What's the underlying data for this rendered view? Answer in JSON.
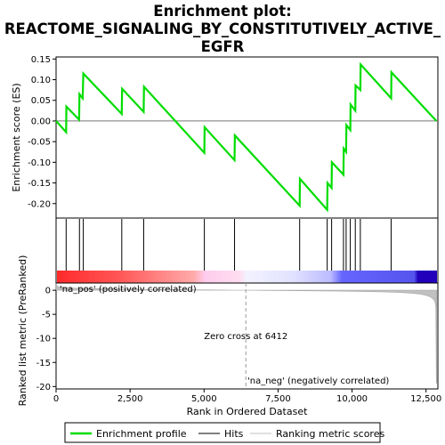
{
  "title_lines": [
    "Enrichment plot:",
    "REACTOME_SIGNALING_BY_CONSTITUTIVELY_ACTIVE_",
    "EGFR"
  ],
  "chart_data": [
    {
      "type": "line",
      "ylabel": "Enrichment score (ES)",
      "xlim": [
        0,
        12900
      ],
      "ylim": [
        -0.235,
        0.155
      ],
      "yticks": [
        0.15,
        0.1,
        0.05,
        0.0,
        -0.05,
        -0.1,
        -0.15,
        -0.2
      ],
      "ytick_labels": [
        "0.15",
        "0.10",
        "0.05",
        "0.00",
        "-0.05",
        "-0.10",
        "-0.15",
        "-0.20"
      ],
      "series": [
        {
          "color": "#00dd00",
          "x": [
            0,
            340,
            350,
            780,
            790,
            900,
            920,
            2220,
            2230,
            2960,
            2970,
            5010,
            5020,
            6030,
            6040,
            8230,
            8240,
            9160,
            9170,
            9310,
            9320,
            9710,
            9720,
            9800,
            9810,
            9940,
            9950,
            10110,
            10120,
            10280,
            10290,
            11320,
            11330,
            12850
          ],
          "y": [
            0.0,
            -0.027,
            0.035,
            0.003,
            0.065,
            0.055,
            0.115,
            0.017,
            0.078,
            0.022,
            0.083,
            -0.077,
            -0.015,
            -0.095,
            -0.035,
            -0.205,
            -0.14,
            -0.215,
            -0.15,
            -0.162,
            -0.1,
            -0.13,
            -0.067,
            -0.075,
            -0.01,
            -0.022,
            0.04,
            0.025,
            0.086,
            0.075,
            0.137,
            0.055,
            0.118,
            0.0
          ]
        }
      ]
    },
    {
      "type": "hits",
      "hit_positions": [
        340,
        790,
        920,
        2220,
        2960,
        5010,
        6030,
        8230,
        9160,
        9310,
        9710,
        9800,
        9940,
        10110,
        10280,
        11320
      ]
    },
    {
      "type": "area",
      "ylabel": "Ranked list metric (PreRanked)",
      "xlabel": "Rank in Ordered Dataset",
      "xlim": [
        0,
        12900
      ],
      "ylim": [
        -20.5,
        1.5
      ],
      "xticks": [
        0,
        2500,
        5000,
        7500,
        10000,
        12500
      ],
      "xtick_labels": [
        "0",
        "2,500",
        "5,000",
        "7,500",
        "10,000",
        "12,500"
      ],
      "yticks": [
        0,
        -5,
        -10,
        -15,
        -20
      ],
      "ytick_labels": [
        "0",
        "-5",
        "-10",
        "-15",
        "-20"
      ],
      "x": [
        0,
        30,
        100,
        300,
        600,
        1000,
        2000,
        3000,
        4000,
        5000,
        6000,
        6412,
        7000,
        8000,
        9000,
        10000,
        11000,
        11500,
        12000,
        12300,
        12500,
        12650,
        12750,
        12800,
        12830,
        12850,
        12860
      ],
      "y": [
        1.4,
        0.9,
        0.7,
        0.55,
        0.45,
        0.38,
        0.28,
        0.2,
        0.14,
        0.08,
        0.03,
        0.0,
        -0.04,
        -0.09,
        -0.15,
        -0.22,
        -0.33,
        -0.42,
        -0.6,
        -0.8,
        -1.05,
        -1.4,
        -1.9,
        -2.4,
        -3.5,
        -19.3,
        -19.3
      ],
      "zero_cross_label": "Zero cross at 6412",
      "zero_cross_x": 6412,
      "pos_label": "'na_pos' (positively correlated)",
      "neg_label": "'na_neg' (negatively correlated)"
    }
  ],
  "legend": {
    "items": [
      {
        "label": "Enrichment profile",
        "color": "#00dd00"
      },
      {
        "label": "Hits",
        "color": "#000000"
      },
      {
        "label": "Ranking metric scores",
        "color": "#c0c0c0"
      }
    ]
  }
}
